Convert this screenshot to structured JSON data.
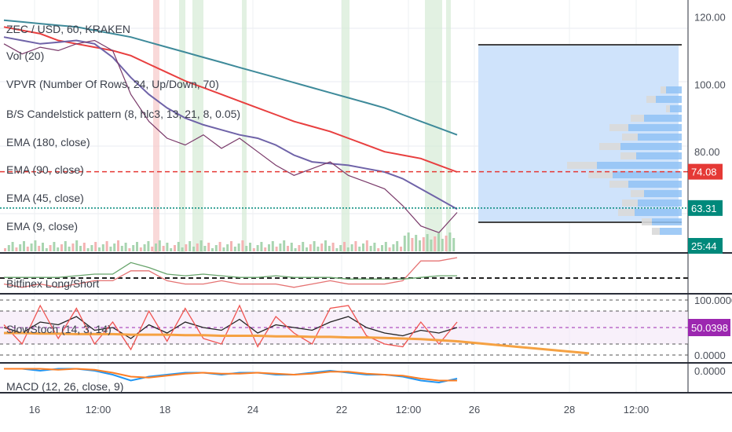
{
  "chart_data": [
    {
      "type": "line",
      "panel": "price",
      "title": "ZEC / USD, 60, KRAKEN",
      "indicators": [
        "Vol (20)",
        "VPVR (Number Of Rows, 24, Up/Down, 70)",
        "B/S Candelstick pattern (8, hlc3, 13, 21, 8, 0.05)",
        "EMA (180, close)",
        "EMA (90, close)",
        "EMA (45, close)",
        "EMA (9, close)"
      ],
      "x_ticks": [
        "16",
        "12:00",
        "18",
        "24",
        "22",
        "12:00",
        "26",
        "28",
        "12:00"
      ],
      "y_ticks": [
        120,
        100,
        80
      ],
      "ylim": [
        50,
        125
      ],
      "series": [
        {
          "name": "EMA (180, close)",
          "color": "#3e8a9a",
          "x": [
            0,
            1,
            2,
            3,
            4,
            5,
            6,
            7,
            8,
            9,
            10,
            11,
            12,
            13,
            14,
            15,
            16,
            17,
            18,
            19,
            20,
            21,
            22,
            23,
            24,
            25
          ],
          "values": [
            119,
            118.5,
            118,
            117.5,
            117,
            116,
            115,
            114,
            112.5,
            111,
            109.5,
            108,
            106.5,
            105,
            103.5,
            102,
            100.5,
            99,
            97.5,
            96,
            94.5,
            93,
            91,
            89,
            87,
            85
          ]
        },
        {
          "name": "EMA (90, close)",
          "color": "#e83f3f",
          "x": [
            0,
            1,
            2,
            3,
            4,
            5,
            6,
            7,
            8,
            9,
            10,
            11,
            12,
            13,
            14,
            15,
            16,
            17,
            18,
            19,
            20,
            21,
            22,
            23,
            24,
            25
          ],
          "values": [
            117,
            116,
            115,
            113,
            112,
            111,
            110,
            108.5,
            106,
            103.5,
            101,
            99,
            97,
            95,
            93,
            91,
            89,
            87.5,
            86,
            84,
            82,
            80,
            79,
            78,
            76,
            74
          ]
        },
        {
          "name": "EMA (45, close)",
          "color": "#6f63a8",
          "x": [
            0,
            1,
            2,
            3,
            4,
            5,
            6,
            7,
            8,
            9,
            10,
            11,
            12,
            13,
            14,
            15,
            16,
            17,
            18,
            19,
            20,
            21,
            22,
            23,
            24,
            25
          ],
          "values": [
            114,
            113,
            112,
            112.5,
            113,
            112,
            108,
            102,
            97,
            93,
            90,
            88,
            86.5,
            85,
            84,
            82,
            79,
            77,
            76.5,
            76,
            75,
            74,
            72,
            69,
            66,
            63
          ]
        },
        {
          "name": "Price",
          "color": "#7a3a6a",
          "x": [
            0,
            1,
            2,
            3,
            4,
            5,
            6,
            7,
            8,
            9,
            10,
            11,
            12,
            13,
            14,
            15,
            16,
            17,
            18,
            19,
            20,
            21,
            22,
            23,
            24,
            25
          ],
          "values": [
            112,
            109,
            111,
            110,
            112,
            113,
            110,
            97,
            89,
            84,
            82,
            85,
            81,
            84,
            80,
            76,
            73,
            75,
            77,
            73,
            71,
            69,
            64,
            58,
            56,
            62
          ]
        }
      ],
      "levels": [
        {
          "value": 74.08,
          "color": "#e53935",
          "style": "dashed"
        },
        {
          "value": 63.31,
          "color": "#00897b",
          "style": "dotted"
        }
      ],
      "price_tags": [
        "74.08",
        "63.31",
        "25:44"
      ],
      "tag_colors": [
        "#e53935",
        "#00897b",
        "#00897b"
      ]
    },
    {
      "type": "line",
      "panel": "indicator",
      "title": "Bitfinex Long/Short",
      "series": [
        {
          "name": "",
          "color": "#e57373",
          "x": [
            0,
            1,
            2,
            3,
            4,
            5,
            6,
            7,
            8,
            9,
            10,
            11,
            12,
            13,
            14,
            15,
            16,
            17,
            18,
            19,
            20,
            21,
            22,
            23,
            24,
            25
          ],
          "values": [
            0.2,
            0.1,
            0.2,
            0.1,
            0.2,
            0.3,
            0.3,
            0.6,
            0.6,
            0.3,
            0.2,
            0.2,
            0.3,
            0.2,
            0.2,
            0.2,
            0.1,
            0.2,
            0.3,
            0.2,
            0.2,
            0.2,
            0.3,
            0.9,
            0.9,
            1.0
          ]
        },
        {
          "name": "",
          "color": "#66a36a",
          "x": [
            0,
            1,
            2,
            3,
            4,
            5,
            6,
            7,
            8,
            9,
            10,
            11,
            12,
            13,
            14,
            15,
            16,
            17,
            18,
            19,
            20,
            21,
            22,
            23,
            24,
            25
          ],
          "values": [
            0.4,
            0.4,
            0.4,
            0.4,
            0.45,
            0.5,
            0.5,
            0.85,
            0.7,
            0.5,
            0.45,
            0.5,
            0.45,
            0.4,
            0.4,
            0.45,
            0.4,
            0.4,
            0.4,
            0.35,
            0.35,
            0.35,
            0.35,
            0.4,
            0.45,
            0.45
          ]
        }
      ]
    },
    {
      "type": "line",
      "panel": "oscillator",
      "title": "SlowStoch (14, 3, 14)",
      "y_ticks": [
        "100.0000",
        "0.0000"
      ],
      "value_tag": "50.0398",
      "tag_color": "#9c27b0",
      "series": [
        {
          "name": "",
          "color": "#222222",
          "x": [
            0,
            1,
            2,
            3,
            4,
            5,
            6,
            7,
            8,
            9,
            10,
            11,
            12,
            13,
            14,
            15,
            16,
            17,
            18,
            19,
            20,
            21,
            22,
            23,
            24,
            25
          ],
          "values": [
            50,
            40,
            60,
            55,
            70,
            45,
            50,
            30,
            55,
            40,
            60,
            50,
            45,
            65,
            40,
            55,
            50,
            45,
            60,
            70,
            50,
            40,
            35,
            45,
            40,
            50
          ]
        },
        {
          "name": "",
          "color": "#ef5350",
          "x": [
            0,
            1,
            2,
            3,
            4,
            5,
            6,
            7,
            8,
            9,
            10,
            11,
            12,
            13,
            14,
            15,
            16,
            17,
            18,
            19,
            20,
            21,
            22,
            23,
            24,
            25
          ],
          "values": [
            55,
            20,
            90,
            30,
            85,
            20,
            60,
            10,
            80,
            25,
            85,
            30,
            20,
            90,
            15,
            70,
            40,
            20,
            85,
            90,
            35,
            20,
            15,
            60,
            20,
            60
          ]
        },
        {
          "name": "",
          "color": "#f5a142",
          "x": [
            0,
            1,
            2,
            3,
            4,
            5,
            6,
            7,
            8,
            9,
            10,
            11,
            12,
            13,
            14,
            15,
            16,
            17,
            18,
            19,
            20,
            21,
            22,
            23,
            24,
            25
          ],
          "values": [
            40,
            40,
            39,
            39,
            38,
            38,
            38,
            37,
            37,
            37,
            36,
            36,
            35,
            35,
            35,
            34,
            34,
            33,
            33,
            32,
            32,
            31,
            30,
            29,
            27,
            25
          ]
        }
      ]
    },
    {
      "type": "line",
      "panel": "macd",
      "title": "MACD (12, 26, close, 9)",
      "y_ticks": [
        "0.0000"
      ],
      "series": [
        {
          "name": "",
          "color": "#2196f3",
          "x": [
            0,
            1,
            2,
            3,
            4,
            5,
            6,
            7,
            8,
            9,
            10,
            11,
            12,
            13,
            14,
            15,
            16,
            17,
            18,
            19,
            20,
            21,
            22,
            23,
            24,
            25
          ],
          "values": [
            0.1,
            0.1,
            0.0,
            0.1,
            0.1,
            0.0,
            -0.2,
            -0.5,
            -0.3,
            -0.2,
            -0.1,
            -0.1,
            -0.2,
            -0.1,
            -0.1,
            -0.2,
            -0.2,
            -0.1,
            0.0,
            -0.1,
            -0.2,
            -0.2,
            -0.3,
            -0.5,
            -0.6,
            -0.4
          ]
        },
        {
          "name": "",
          "color": "#ff7f24",
          "x": [
            0,
            1,
            2,
            3,
            4,
            5,
            6,
            7,
            8,
            9,
            10,
            11,
            12,
            13,
            14,
            15,
            16,
            17,
            18,
            19,
            20,
            21,
            22,
            23,
            24,
            25
          ],
          "values": [
            0.1,
            0.1,
            0.1,
            0.05,
            0.1,
            0.05,
            -0.1,
            -0.3,
            -0.35,
            -0.25,
            -0.15,
            -0.1,
            -0.15,
            -0.15,
            -0.1,
            -0.15,
            -0.2,
            -0.15,
            -0.05,
            -0.05,
            -0.15,
            -0.2,
            -0.25,
            -0.4,
            -0.5,
            -0.5
          ]
        }
      ]
    }
  ]
}
